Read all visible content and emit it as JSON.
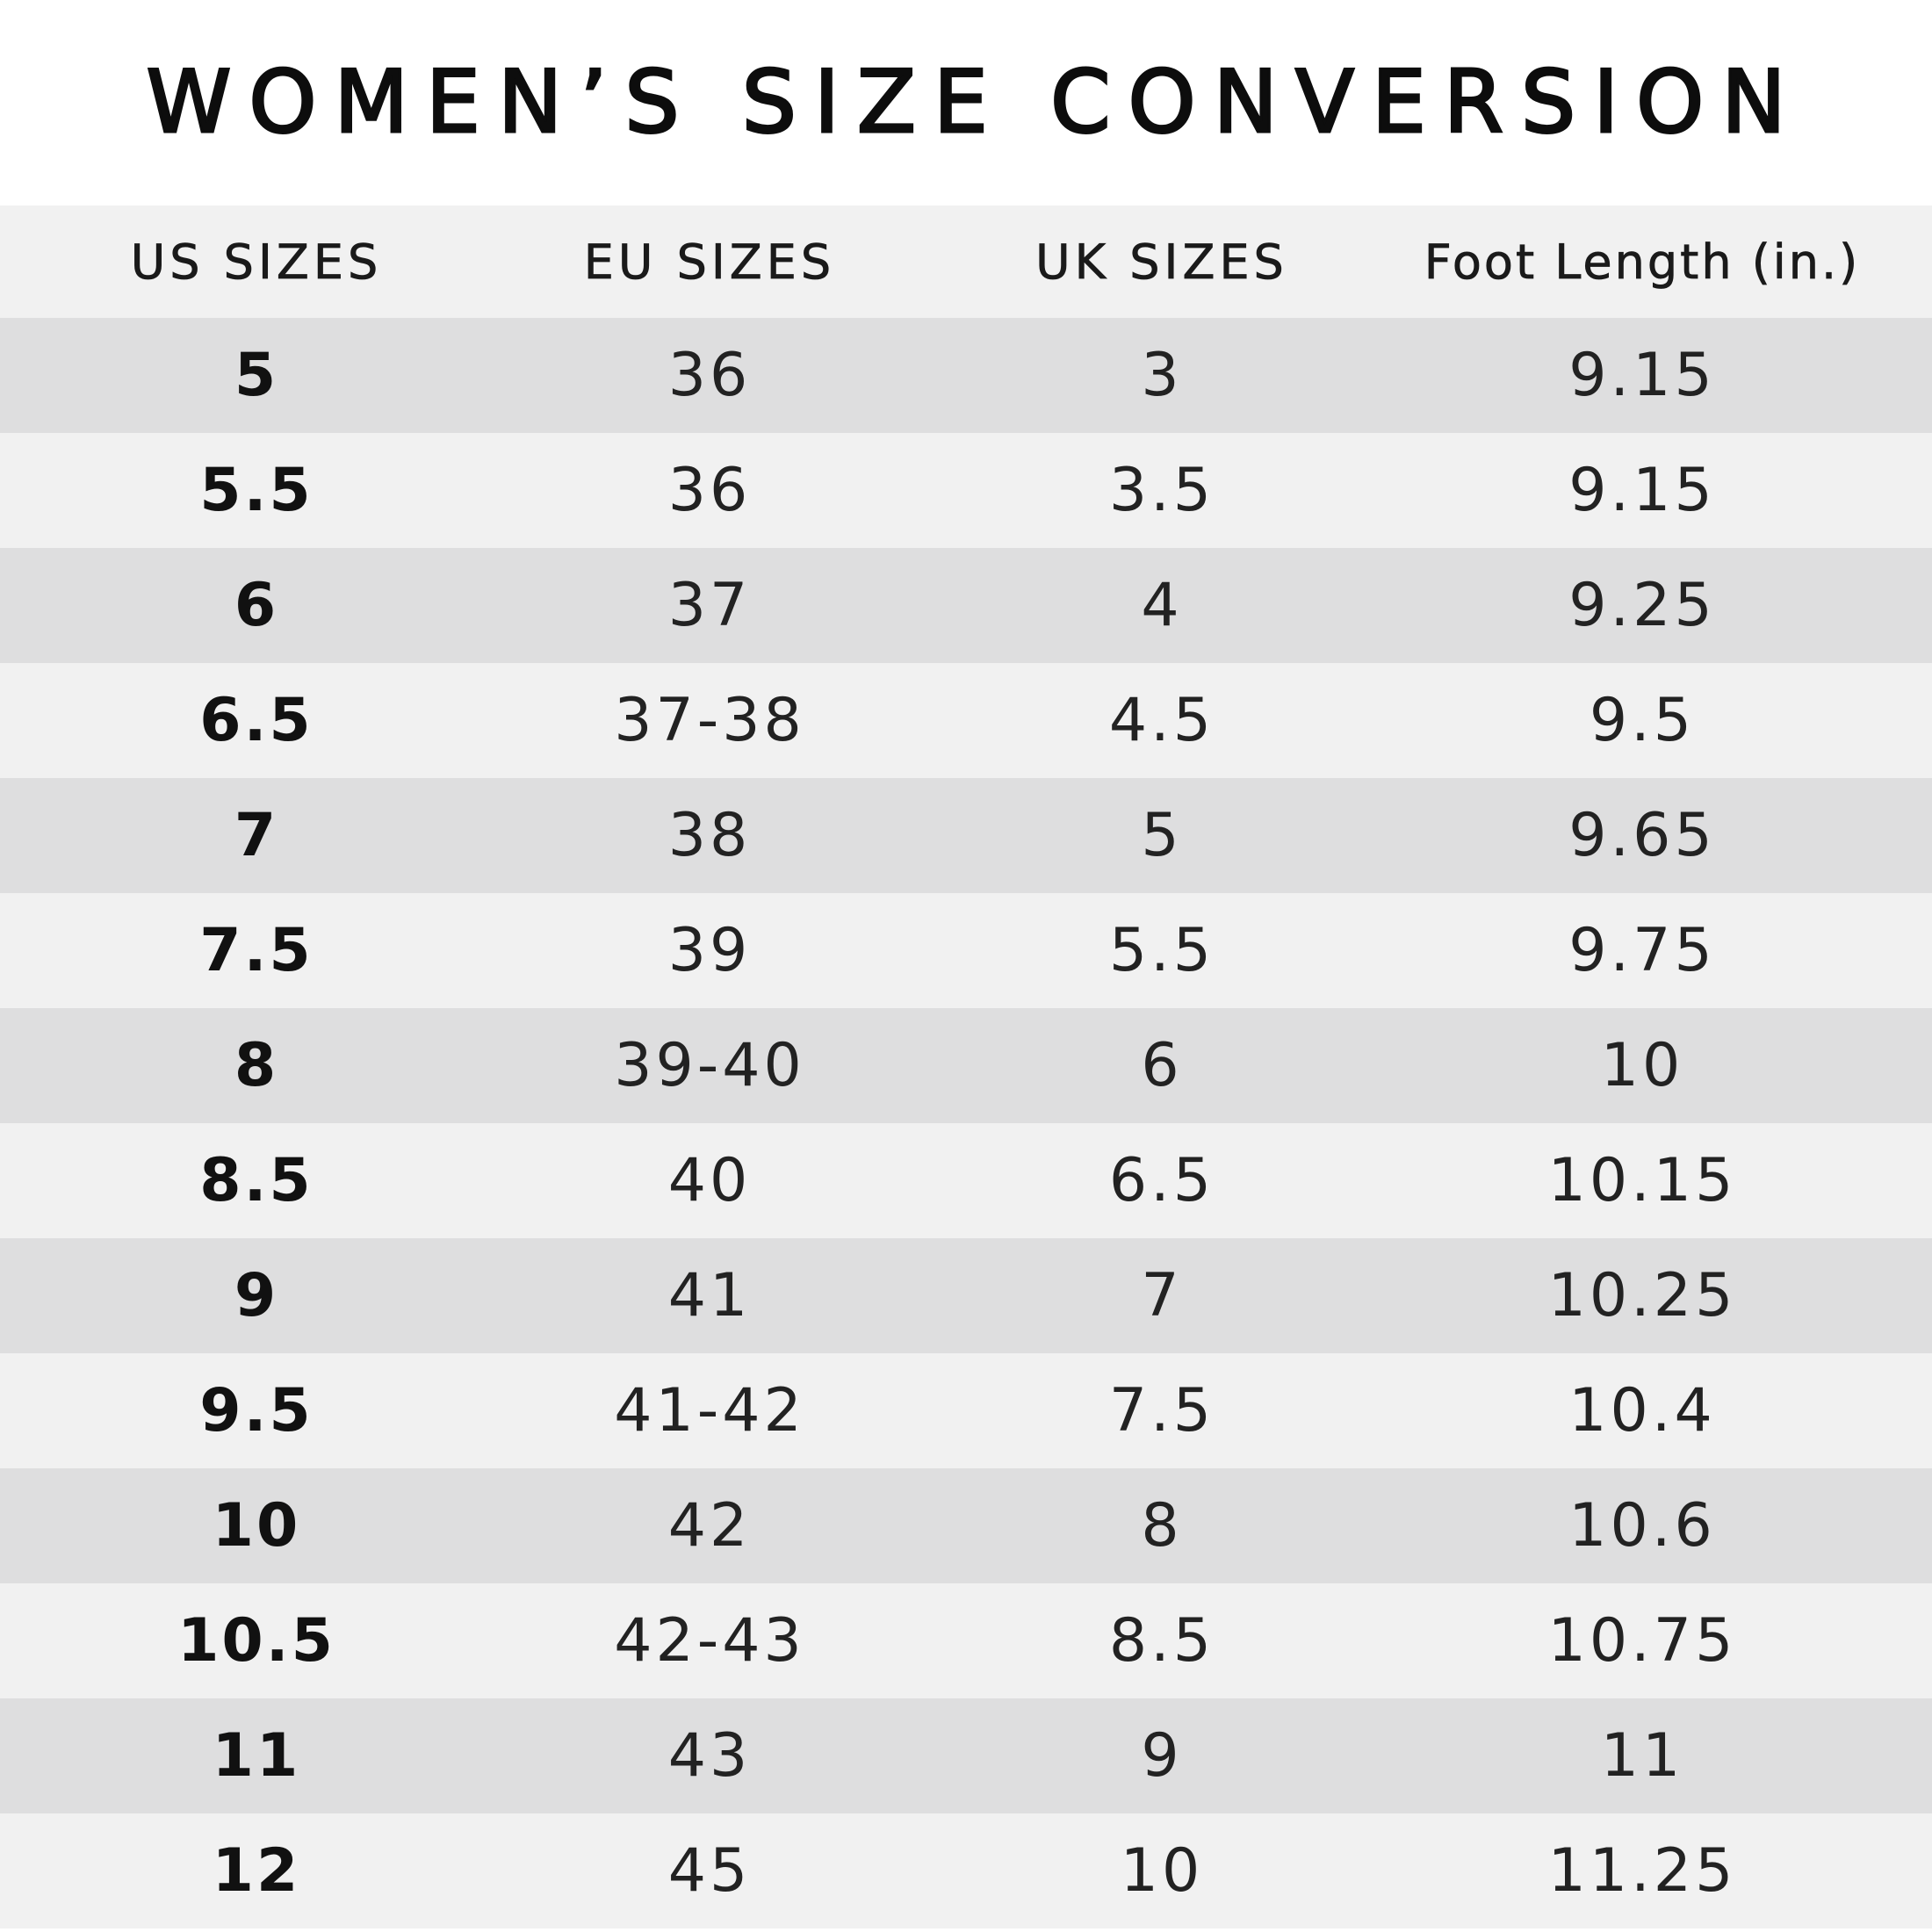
{
  "title": "WOMEN’S SIZE CONVERSION",
  "headers": [
    "US SIZES",
    "EU SIZES",
    "UK SIZES",
    "Foot Length (in.)"
  ],
  "rows": [
    {
      "us": "5",
      "eu": "36",
      "uk": "3",
      "foot": "9.15"
    },
    {
      "us": "5.5",
      "eu": "36",
      "uk": "3.5",
      "foot": "9.15"
    },
    {
      "us": "6",
      "eu": "37",
      "uk": "4",
      "foot": "9.25"
    },
    {
      "us": "6.5",
      "eu": "37-38",
      "uk": "4.5",
      "foot": "9.5"
    },
    {
      "us": "7",
      "eu": "38",
      "uk": "5",
      "foot": "9.65"
    },
    {
      "us": "7.5",
      "eu": "39",
      "uk": "5.5",
      "foot": "9.75"
    },
    {
      "us": "8",
      "eu": "39-40",
      "uk": "6",
      "foot": "10"
    },
    {
      "us": "8.5",
      "eu": "40",
      "uk": "6.5",
      "foot": "10.15"
    },
    {
      "us": "9",
      "eu": "41",
      "uk": "7",
      "foot": "10.25"
    },
    {
      "us": "9.5",
      "eu": "41-42",
      "uk": "7.5",
      "foot": "10.4"
    },
    {
      "us": "10",
      "eu": "42",
      "uk": "8",
      "foot": "10.6"
    },
    {
      "us": "10.5",
      "eu": "42-43",
      "uk": "8.5",
      "foot": "10.75"
    },
    {
      "us": "11",
      "eu": "43",
      "uk": "9",
      "foot": "11"
    },
    {
      "us": "12",
      "eu": "45",
      "uk": "10",
      "foot": "11.25"
    }
  ],
  "colors": {
    "background": "#ffffff",
    "stripe_dark": "#dededf",
    "stripe_light": "#f1f1f1",
    "text": "#111111"
  }
}
